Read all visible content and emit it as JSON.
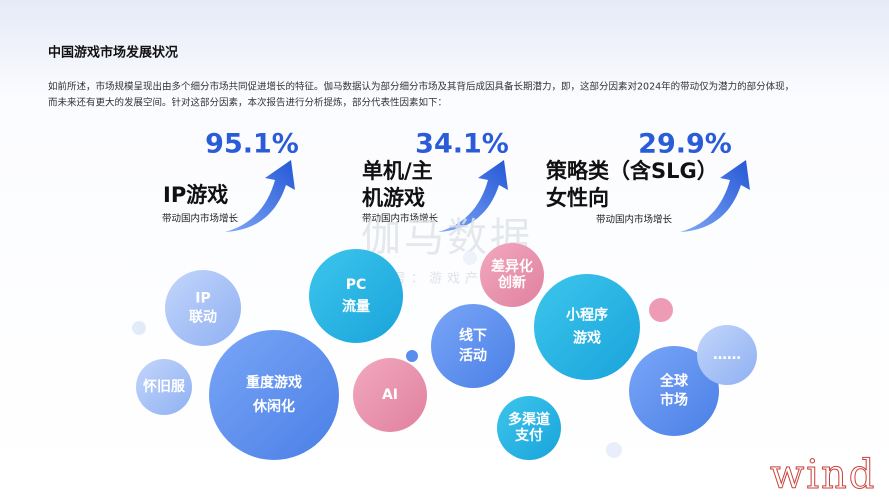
{
  "title": "中国游戏市场发展状况",
  "intro": [
    "如前所述，市场规模呈现出由多个细分市场共同促进增长的特征。伽马数据认为部分细分市场及其背后成因具备长期潜力，即，这部分因素对2024年的带动仅为潜力的部分体现，",
    "而未来还有更大的发展空间。针对这部分因素，本次报告进行分析提炼，部分代表性因素如下："
  ],
  "stats": [
    {
      "value": "95.1%",
      "label": [
        "IP游戏"
      ],
      "sub": "带动国内市场增长"
    },
    {
      "value": "34.1%",
      "label": [
        "单机/主",
        "机游戏"
      ],
      "sub": "带动国内市场增长"
    },
    {
      "value": "29.9%",
      "label": [
        "策略类（含SLG）",
        "女性向"
      ],
      "sub": "带动国内市场增长"
    }
  ],
  "watermark": {
    "name": "伽马数据",
    "wechat": "微信号：游戏产业报告",
    "corner": "wind"
  },
  "bubbles": [
    [
      "IP",
      "联动"
    ],
    [
      "PC",
      "流量"
    ],
    [
      "差异化",
      "创新"
    ],
    [
      "怀旧服"
    ],
    [
      "重度游戏",
      "休闲化"
    ],
    [
      "AI"
    ],
    [
      "线下",
      "活动"
    ],
    [
      "小程序",
      "游戏"
    ],
    [
      "多渠道",
      "支付"
    ],
    [
      "全球",
      "市场"
    ],
    [
      "……"
    ]
  ]
}
